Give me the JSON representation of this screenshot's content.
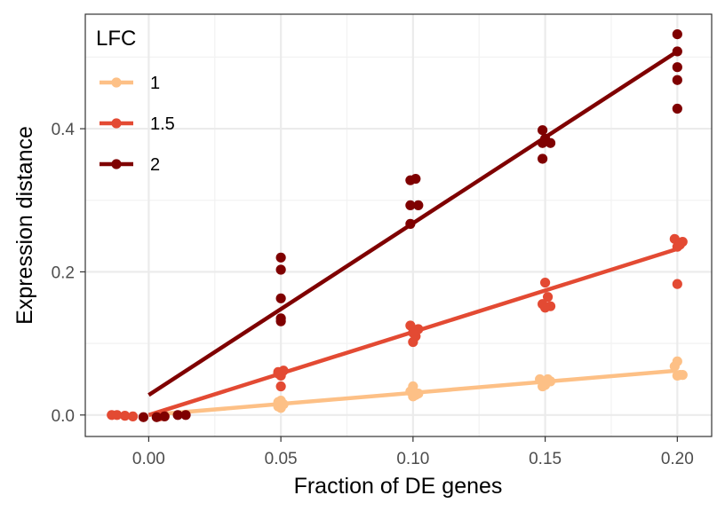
{
  "chart_data": {
    "type": "scatter",
    "title": "",
    "xlabel": "Fraction of DE genes",
    "ylabel": "Expression distance",
    "xlim": [
      -0.024,
      0.213
    ],
    "ylim": [
      -0.03,
      0.56
    ],
    "x_ticks": [
      0.0,
      0.05,
      0.1,
      0.15,
      0.2
    ],
    "x_tick_labels": [
      "0.00",
      "0.05",
      "0.10",
      "0.15",
      "0.20"
    ],
    "y_ticks": [
      0.0,
      0.2,
      0.4
    ],
    "y_tick_labels": [
      "0.0",
      "0.2",
      "0.4"
    ],
    "grid": true,
    "legend": {
      "title": "LFC",
      "position": "top-left inside"
    },
    "series": [
      {
        "name": "1",
        "color": "#fdc086",
        "fit": [
          [
            0.0,
            0.0
          ],
          [
            0.2,
            0.062
          ]
        ],
        "points": [
          [
            0.049,
            0.012
          ],
          [
            0.05,
            0.02
          ],
          [
            0.051,
            0.015
          ],
          [
            0.049,
            0.018
          ],
          [
            0.05,
            0.01
          ],
          [
            0.1,
            0.04
          ],
          [
            0.099,
            0.033
          ],
          [
            0.101,
            0.028
          ],
          [
            0.102,
            0.03
          ],
          [
            0.1,
            0.026
          ],
          [
            0.149,
            0.04
          ],
          [
            0.151,
            0.05
          ],
          [
            0.152,
            0.047
          ],
          [
            0.148,
            0.05
          ],
          [
            0.15,
            0.042
          ],
          [
            0.2,
            0.075
          ],
          [
            0.199,
            0.068
          ],
          [
            0.201,
            0.056
          ],
          [
            0.2,
            0.055
          ],
          [
            0.202,
            0.056
          ]
        ]
      },
      {
        "name": "1.5",
        "color": "#e34a33",
        "fit": [
          [
            0.0,
            0.0
          ],
          [
            0.2,
            0.232
          ]
        ],
        "points": [
          [
            -0.014,
            0.0
          ],
          [
            -0.012,
            0.0
          ],
          [
            -0.009,
            -0.001
          ],
          [
            -0.006,
            -0.002
          ],
          [
            0.004,
            -0.002
          ],
          [
            0.049,
            0.06
          ],
          [
            0.05,
            0.04
          ],
          [
            0.051,
            0.062
          ],
          [
            0.049,
            0.058
          ],
          [
            0.05,
            0.055
          ],
          [
            0.099,
            0.125
          ],
          [
            0.101,
            0.11
          ],
          [
            0.1,
            0.102
          ],
          [
            0.102,
            0.12
          ],
          [
            0.1,
            0.115
          ],
          [
            0.15,
            0.185
          ],
          [
            0.151,
            0.165
          ],
          [
            0.149,
            0.155
          ],
          [
            0.152,
            0.152
          ],
          [
            0.15,
            0.15
          ],
          [
            0.199,
            0.246
          ],
          [
            0.202,
            0.242
          ],
          [
            0.2,
            0.235
          ],
          [
            0.2,
            0.183
          ],
          [
            0.201,
            0.238
          ]
        ]
      },
      {
        "name": "2",
        "color": "#7f0000",
        "fit": [
          [
            0.0,
            0.028
          ],
          [
            0.2,
            0.508
          ]
        ],
        "points": [
          [
            -0.002,
            -0.003
          ],
          [
            0.003,
            -0.003
          ],
          [
            0.006,
            -0.002
          ],
          [
            0.011,
            0.0
          ],
          [
            0.014,
            0.0
          ],
          [
            0.05,
            0.22
          ],
          [
            0.05,
            0.203
          ],
          [
            0.05,
            0.163
          ],
          [
            0.05,
            0.135
          ],
          [
            0.05,
            0.131
          ],
          [
            0.099,
            0.328
          ],
          [
            0.101,
            0.33
          ],
          [
            0.099,
            0.293
          ],
          [
            0.102,
            0.293
          ],
          [
            0.099,
            0.267
          ],
          [
            0.149,
            0.398
          ],
          [
            0.15,
            0.386
          ],
          [
            0.152,
            0.38
          ],
          [
            0.149,
            0.38
          ],
          [
            0.149,
            0.358
          ],
          [
            0.2,
            0.532
          ],
          [
            0.2,
            0.508
          ],
          [
            0.2,
            0.486
          ],
          [
            0.2,
            0.468
          ],
          [
            0.2,
            0.428
          ]
        ]
      }
    ]
  }
}
